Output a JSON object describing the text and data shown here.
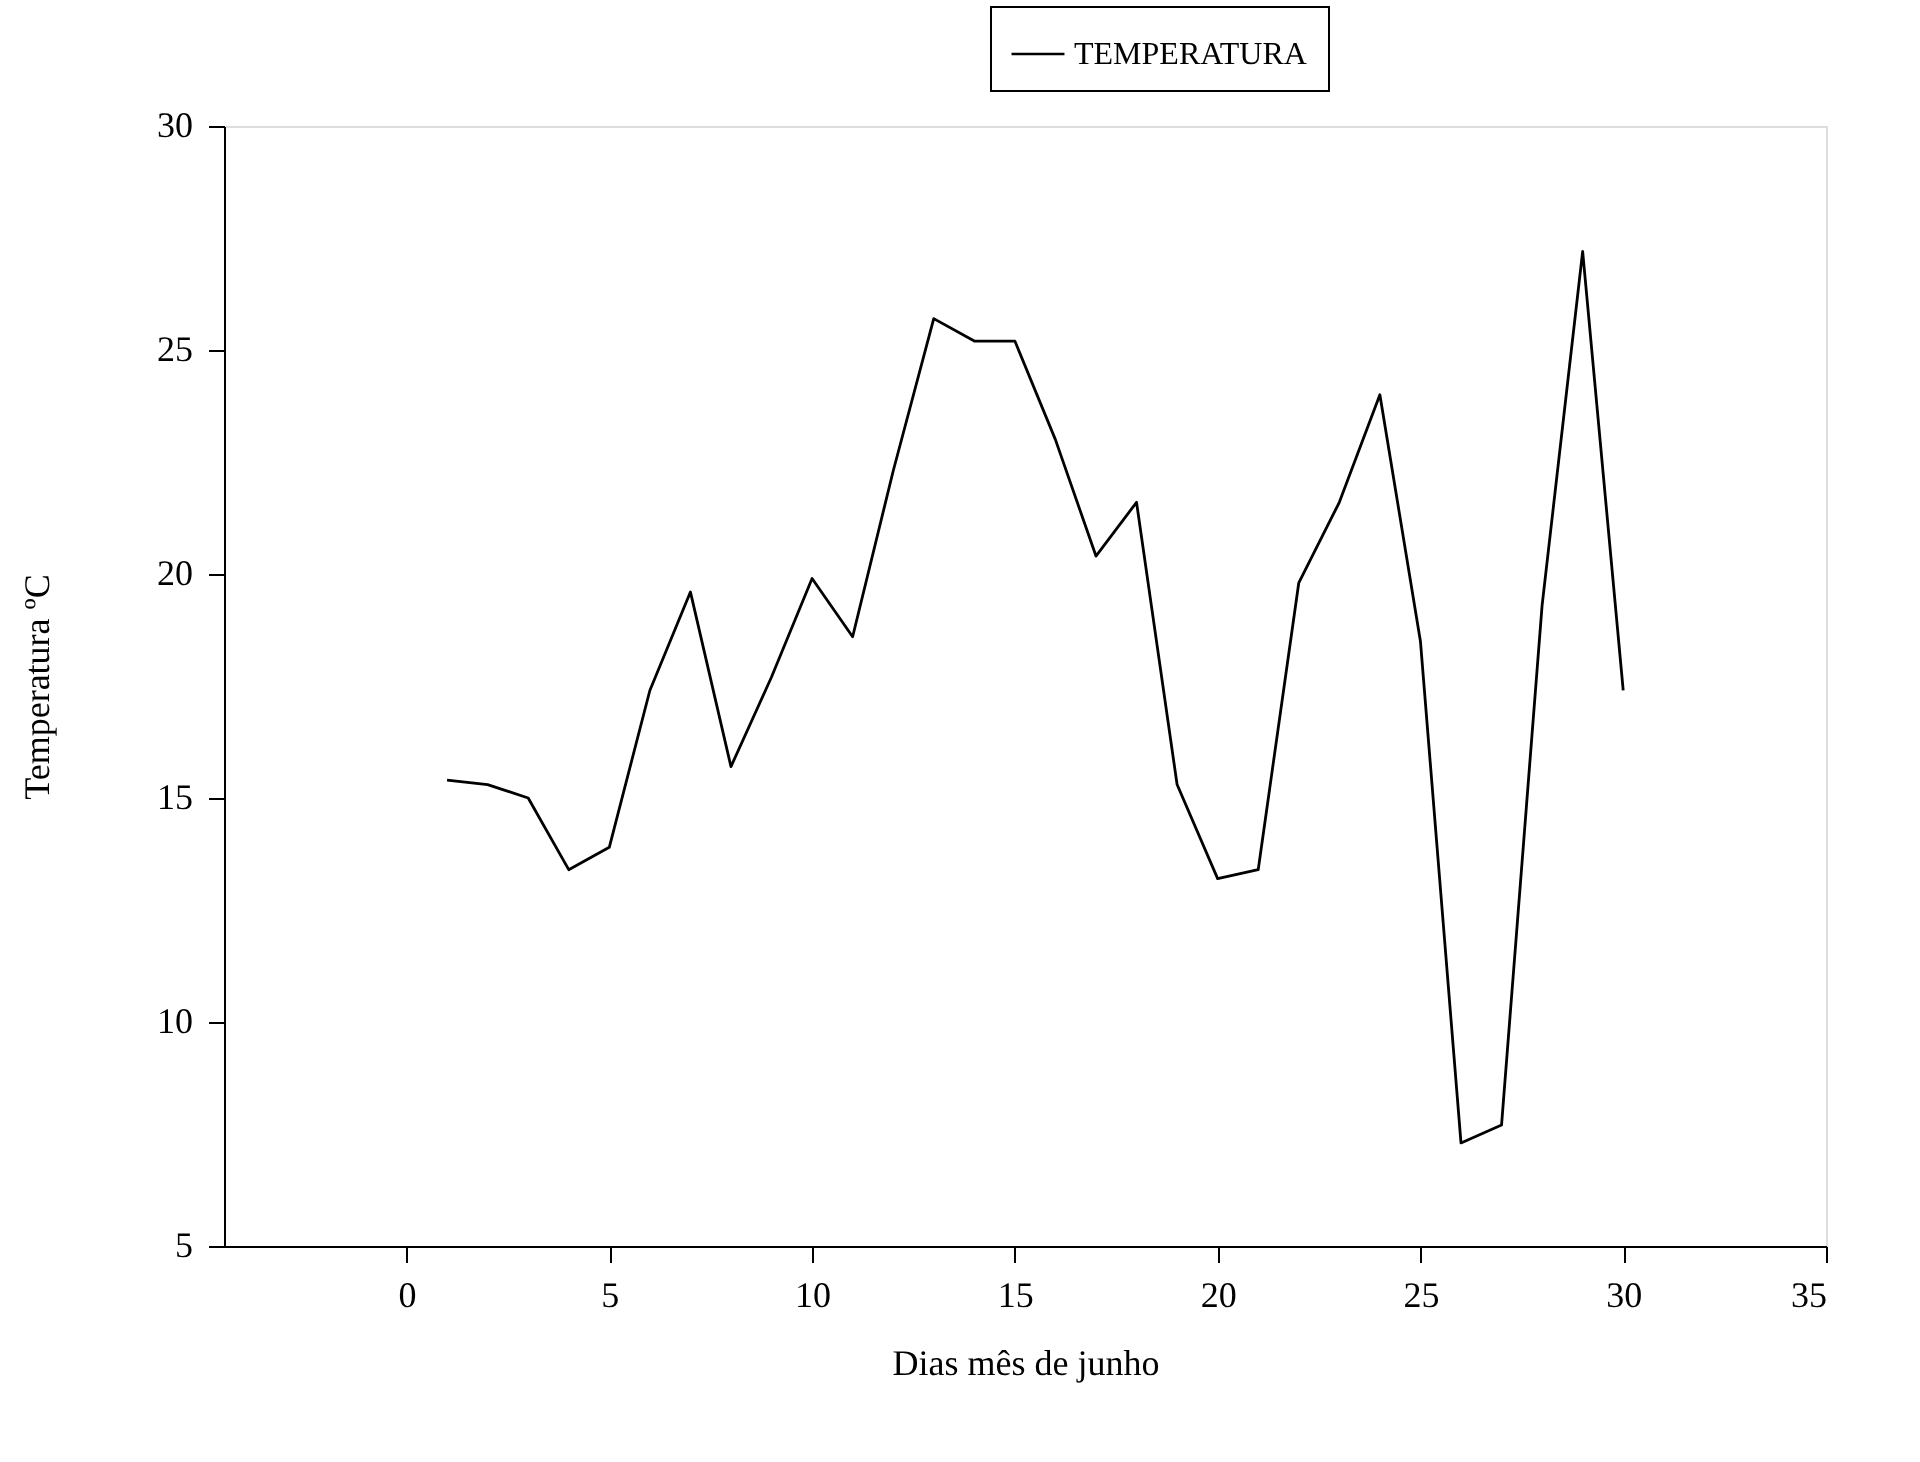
{
  "chart_data": {
    "type": "line",
    "xlabel": "Dias mês de junho",
    "ylabel": "Temperatura ºC",
    "x": [
      1,
      2,
      3,
      4,
      5,
      6,
      7,
      8,
      9,
      10,
      11,
      12,
      13,
      14,
      15,
      16,
      17,
      18,
      19,
      20,
      21,
      22,
      23,
      24,
      25,
      26,
      27,
      28,
      29,
      30
    ],
    "series": [
      {
        "name": "TEMPERATURA",
        "color": "#000000",
        "values": [
          15.4,
          15.3,
          15.0,
          13.4,
          13.9,
          17.4,
          19.6,
          15.7,
          17.7,
          19.9,
          18.6,
          22.3,
          25.7,
          25.2,
          25.2,
          23.0,
          20.4,
          21.6,
          15.3,
          13.2,
          13.4,
          19.8,
          21.6,
          24.0,
          18.5,
          7.3,
          7.7,
          19.3,
          27.2,
          17.4
        ]
      }
    ],
    "xlim": [
      -4.5,
      35
    ],
    "xticks": [
      0,
      5,
      10,
      15,
      20,
      25,
      30,
      35
    ],
    "ylim": [
      5,
      30
    ],
    "yticks": [
      5,
      10,
      15,
      20,
      25,
      30
    ],
    "grid": false,
    "legend": "top right",
    "marker": "none",
    "line_style": "solid"
  }
}
